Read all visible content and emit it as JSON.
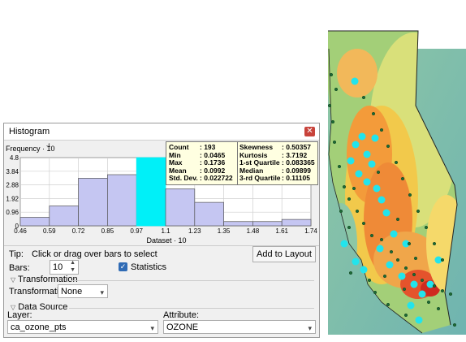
{
  "window": {
    "title": "Histogram",
    "close_icon": "close-icon"
  },
  "chart_data": {
    "type": "bar",
    "ylabel": "Frequency · 10",
    "ylabel_exp": "-1",
    "xlabel": "Dataset · 10",
    "x_ticks": [
      "0.46",
      "0.59",
      "0.72",
      "0.85",
      "0.97",
      "1.1",
      "1.23",
      "1.35",
      "1.48",
      "1.61",
      "1.74"
    ],
    "y_ticks": [
      "0",
      "0.96",
      "1.92",
      "2.88",
      "3.84",
      "4.8"
    ],
    "ylim": [
      0,
      4.8
    ],
    "values": [
      0.6,
      1.4,
      3.35,
      3.6,
      4.8,
      2.6,
      1.65,
      0.3,
      0.3,
      0.45
    ],
    "highlight_index": 4,
    "bar_color": "#c5c6f2",
    "highlight_color": "#00f0f8",
    "grid": true
  },
  "stats": [
    {
      "label": "Count",
      "value": ": 193"
    },
    {
      "label": "Min",
      "value": ": 0.0465"
    },
    {
      "label": "Max",
      "value": ": 0.1736"
    },
    {
      "label": "Mean",
      "value": ": 0.0992"
    },
    {
      "label": "Std. Dev.",
      "value": ": 0.022722"
    },
    {
      "label": "Skewness",
      "value": ": 0.50357"
    },
    {
      "label": "Kurtosis",
      "value": ": 3.7192"
    },
    {
      "label": "1-st Quartile",
      "value": ": 0.083365"
    },
    {
      "label": "Median",
      "value": ": 0.09899"
    },
    {
      "label": "3-rd Quartile",
      "value": ": 0.11105"
    }
  ],
  "controls": {
    "tip_label": "Tip:",
    "tip_text": "Click or drag over bars to select",
    "add_to_layout": "Add to Layout",
    "bars_label": "Bars:",
    "bars_value": "10",
    "statistics_label": "Statistics",
    "statistics_checked": true
  },
  "transformation": {
    "section": "Transformation",
    "label": "Transformation:",
    "value": "None"
  },
  "data_source": {
    "section": "Data Source",
    "layer_label": "Layer:",
    "layer_value": "ca_ozone_pts",
    "attribute_label": "Attribute:",
    "attribute_value": "OZONE"
  }
}
